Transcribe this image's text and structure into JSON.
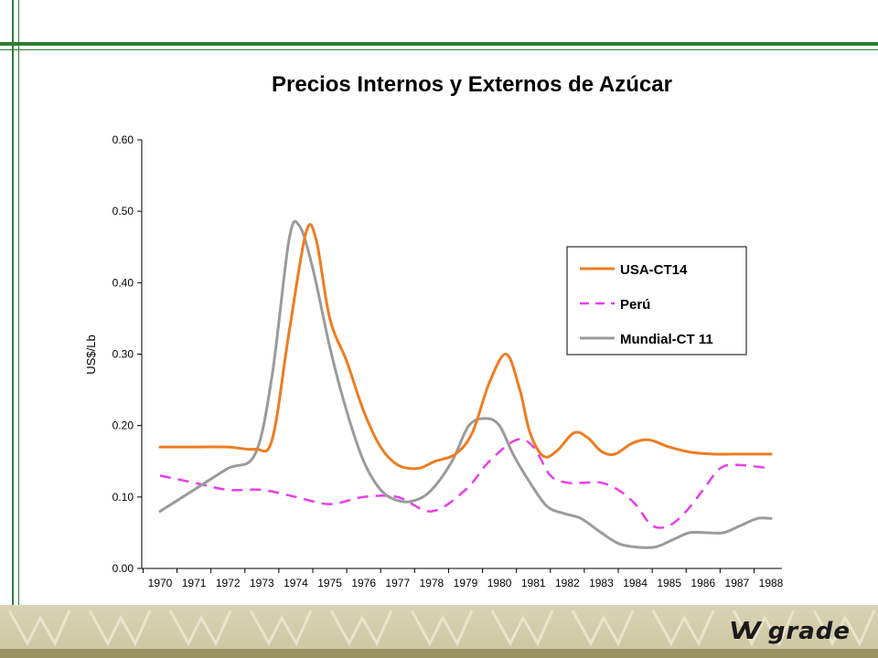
{
  "colors": {
    "frame_green": "#2e7d32",
    "usa": "#ed7d22",
    "peru": "#e83ee8",
    "mundial": "#9b9b9b"
  },
  "logo": {
    "text": "grade",
    "mark": "VV"
  },
  "chart_data": {
    "type": "line",
    "title": "Precios Internos y Externos de Azúcar",
    "xlabel": "",
    "ylabel": "US$/Lb",
    "x": [
      "1970",
      "1971",
      "1972",
      "1973",
      "1974",
      "1975",
      "1976",
      "1977",
      "1978",
      "1979",
      "1980",
      "1981",
      "1982",
      "1983",
      "1984",
      "1985",
      "1986",
      "1987",
      "1988"
    ],
    "ylim": [
      0,
      0.6
    ],
    "yticks": [
      "0.00",
      "0.10",
      "0.20",
      "0.30",
      "0.40",
      "0.50",
      "0.60"
    ],
    "legend_position": "right",
    "grid": false,
    "series": [
      {
        "name": "USA-CT14",
        "style": "solid",
        "points": [
          [
            1970,
            0.17
          ],
          [
            1971,
            0.17
          ],
          [
            1972,
            0.17
          ],
          [
            1972.8,
            0.167
          ],
          [
            1973.3,
            0.18
          ],
          [
            1973.8,
            0.33
          ],
          [
            1974.3,
            0.47
          ],
          [
            1974.6,
            0.46
          ],
          [
            1975,
            0.35
          ],
          [
            1975.5,
            0.29
          ],
          [
            1976,
            0.22
          ],
          [
            1976.5,
            0.17
          ],
          [
            1977,
            0.145
          ],
          [
            1977.6,
            0.14
          ],
          [
            1978.1,
            0.15
          ],
          [
            1978.7,
            0.16
          ],
          [
            1979.2,
            0.19
          ],
          [
            1979.7,
            0.26
          ],
          [
            1980.2,
            0.3
          ],
          [
            1980.6,
            0.25
          ],
          [
            1980.9,
            0.19
          ],
          [
            1981.3,
            0.157
          ],
          [
            1981.7,
            0.165
          ],
          [
            1982.2,
            0.19
          ],
          [
            1982.6,
            0.183
          ],
          [
            1983,
            0.164
          ],
          [
            1983.4,
            0.16
          ],
          [
            1983.9,
            0.175
          ],
          [
            1984.4,
            0.18
          ],
          [
            1985,
            0.17
          ],
          [
            1985.6,
            0.163
          ],
          [
            1986.3,
            0.16
          ],
          [
            1987,
            0.16
          ],
          [
            1988,
            0.16
          ]
        ]
      },
      {
        "name": "Perú",
        "style": "dashed",
        "points": [
          [
            1970,
            0.13
          ],
          [
            1971,
            0.12
          ],
          [
            1972,
            0.11
          ],
          [
            1973,
            0.11
          ],
          [
            1974,
            0.1
          ],
          [
            1975,
            0.09
          ],
          [
            1976,
            0.1
          ],
          [
            1977,
            0.1
          ],
          [
            1978,
            0.08
          ],
          [
            1979,
            0.11
          ],
          [
            1979.7,
            0.15
          ],
          [
            1980.5,
            0.18
          ],
          [
            1981,
            0.17
          ],
          [
            1981.5,
            0.13
          ],
          [
            1982,
            0.12
          ],
          [
            1982.5,
            0.12
          ],
          [
            1983,
            0.12
          ],
          [
            1983.5,
            0.11
          ],
          [
            1984,
            0.09
          ],
          [
            1984.5,
            0.06
          ],
          [
            1985,
            0.06
          ],
          [
            1985.5,
            0.08
          ],
          [
            1986,
            0.11
          ],
          [
            1986.5,
            0.14
          ],
          [
            1987,
            0.145
          ],
          [
            1988,
            0.14
          ]
        ]
      },
      {
        "name": "Mundial-CT 11",
        "style": "solid",
        "points": [
          [
            1970,
            0.08
          ],
          [
            1971,
            0.11
          ],
          [
            1972,
            0.14
          ],
          [
            1972.8,
            0.16
          ],
          [
            1973.3,
            0.27
          ],
          [
            1973.8,
            0.46
          ],
          [
            1974.1,
            0.48
          ],
          [
            1974.5,
            0.42
          ],
          [
            1975,
            0.31
          ],
          [
            1975.5,
            0.22
          ],
          [
            1976,
            0.15
          ],
          [
            1976.5,
            0.11
          ],
          [
            1977,
            0.095
          ],
          [
            1977.5,
            0.095
          ],
          [
            1978,
            0.11
          ],
          [
            1978.6,
            0.15
          ],
          [
            1979.1,
            0.2
          ],
          [
            1979.6,
            0.21
          ],
          [
            1980,
            0.2
          ],
          [
            1980.4,
            0.16
          ],
          [
            1980.9,
            0.12
          ],
          [
            1981.4,
            0.087
          ],
          [
            1981.9,
            0.077
          ],
          [
            1982.4,
            0.07
          ],
          [
            1983,
            0.05
          ],
          [
            1983.5,
            0.035
          ],
          [
            1984,
            0.03
          ],
          [
            1984.6,
            0.03
          ],
          [
            1985.1,
            0.04
          ],
          [
            1985.6,
            0.05
          ],
          [
            1986.1,
            0.05
          ],
          [
            1986.6,
            0.05
          ],
          [
            1987.1,
            0.06
          ],
          [
            1987.6,
            0.07
          ],
          [
            1988,
            0.07
          ]
        ]
      }
    ]
  }
}
